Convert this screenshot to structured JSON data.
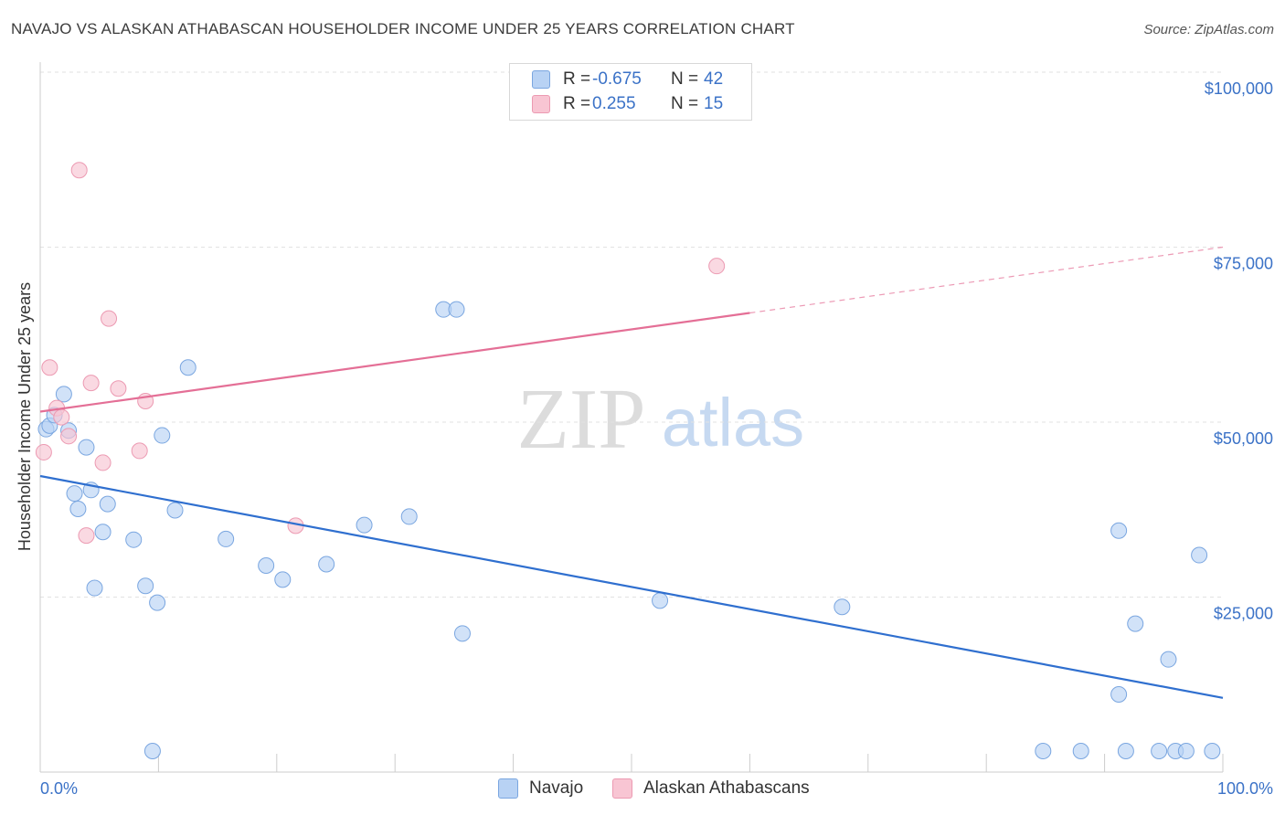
{
  "title": "NAVAJO VS ALASKAN ATHABASCAN HOUSEHOLDER INCOME UNDER 25 YEARS CORRELATION CHART",
  "source": "Source: ZipAtlas.com",
  "watermark": {
    "zip": "ZIP",
    "atlas": "atlas"
  },
  "legend": {
    "rows": [
      {
        "r_label": "R =",
        "r_value": "-0.675",
        "n_label": "N =",
        "n_value": "42",
        "fill": "#b8d2f4",
        "stroke": "#7aa6e0"
      },
      {
        "r_label": "R =",
        "r_value": "0.255",
        "n_label": "N =",
        "n_value": "15",
        "fill": "#f8c5d3",
        "stroke": "#ec9ab2"
      }
    ]
  },
  "bottom_legend": {
    "navajo": "Navajo",
    "alaskan": "Alaskan Athabascans"
  },
  "chart_data": {
    "type": "scatter",
    "title": "NAVAJO VS ALASKAN ATHABASCAN HOUSEHOLDER INCOME UNDER 25 YEARS CORRELATION CHART",
    "xlabel": "",
    "ylabel": "Householder Income Under 25 years",
    "xlim": [
      0,
      100
    ],
    "ylim": [
      0,
      105000
    ],
    "x_tick_labels": [
      {
        "value": 0,
        "label": "0.0%"
      },
      {
        "value": 100,
        "label": "100.0%"
      }
    ],
    "y_ticks": [
      {
        "value": 25000,
        "label": "$25,000"
      },
      {
        "value": 50000,
        "label": "$50,000"
      },
      {
        "value": 75000,
        "label": "$75,000"
      },
      {
        "value": 100000,
        "label": "$100,000"
      }
    ],
    "x_minor_ticks": [
      0,
      10,
      20,
      30,
      40,
      50,
      60,
      70,
      80,
      90,
      100
    ],
    "grid": true,
    "series": [
      {
        "name": "Navajo",
        "color": "#b8d2f4",
        "stroke": "#7aa6e0",
        "line_color": "#2f6fcf",
        "trend": {
          "x0": 0,
          "y0": 42300,
          "x1": 100,
          "y1": 10600,
          "dashed_from": null
        },
        "points": [
          [
            0.5,
            49000
          ],
          [
            0.8,
            49500
          ],
          [
            1.2,
            51000
          ],
          [
            2.0,
            54000
          ],
          [
            2.4,
            48800
          ],
          [
            2.9,
            39800
          ],
          [
            3.2,
            37600
          ],
          [
            3.9,
            46400
          ],
          [
            4.3,
            40300
          ],
          [
            4.6,
            26300
          ],
          [
            5.3,
            34300
          ],
          [
            5.7,
            38300
          ],
          [
            7.9,
            33200
          ],
          [
            8.9,
            26600
          ],
          [
            9.5,
            3000
          ],
          [
            9.9,
            24200
          ],
          [
            10.3,
            48100
          ],
          [
            11.4,
            37400
          ],
          [
            12.5,
            57800
          ],
          [
            15.7,
            33300
          ],
          [
            19.1,
            29500
          ],
          [
            20.5,
            27500
          ],
          [
            24.2,
            29700
          ],
          [
            27.4,
            35300
          ],
          [
            31.2,
            36500
          ],
          [
            34.1,
            66100
          ],
          [
            35.2,
            66100
          ],
          [
            35.7,
            19800
          ],
          [
            52.4,
            24500
          ],
          [
            67.8,
            23600
          ],
          [
            84.8,
            3000
          ],
          [
            88.0,
            3000
          ],
          [
            91.2,
            34500
          ],
          [
            91.2,
            11100
          ],
          [
            91.8,
            3000
          ],
          [
            92.6,
            21200
          ],
          [
            94.6,
            3000
          ],
          [
            95.4,
            16100
          ],
          [
            96.0,
            3000
          ],
          [
            96.9,
            3000
          ],
          [
            98.0,
            31000
          ],
          [
            99.1,
            3000
          ]
        ]
      },
      {
        "name": "Alaskan Athabascans",
        "color": "#f8c5d3",
        "stroke": "#ec9ab2",
        "line_color": "#e46f96",
        "trend": {
          "x0": 0,
          "y0": 51500,
          "x1": 100,
          "y1": 75000,
          "dashed_from": 60
        },
        "points": [
          [
            0.3,
            45700
          ],
          [
            0.8,
            57800
          ],
          [
            1.4,
            52000
          ],
          [
            1.8,
            50700
          ],
          [
            2.4,
            48000
          ],
          [
            3.3,
            86000
          ],
          [
            3.9,
            33800
          ],
          [
            4.3,
            55600
          ],
          [
            5.3,
            44200
          ],
          [
            5.8,
            64800
          ],
          [
            6.6,
            54800
          ],
          [
            8.4,
            45900
          ],
          [
            8.9,
            53000
          ],
          [
            21.6,
            35200
          ],
          [
            57.2,
            72300
          ]
        ]
      }
    ]
  }
}
